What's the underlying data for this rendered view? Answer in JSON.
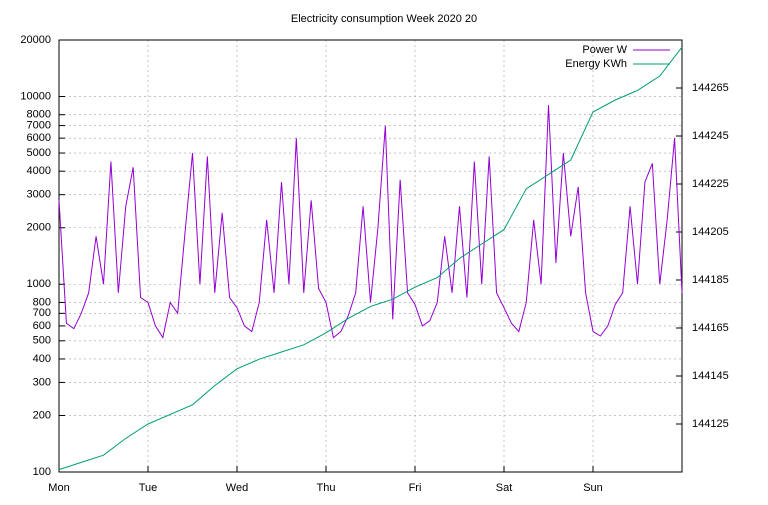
{
  "chart_data": {
    "type": "line",
    "title": "Electricity consumption Week 2020 20",
    "xlim": [
      0,
      168
    ],
    "xticks": [
      {
        "value": 0,
        "label": "Mon"
      },
      {
        "value": 24,
        "label": "Tue"
      },
      {
        "value": 48,
        "label": "Wed"
      },
      {
        "value": 72,
        "label": "Thu"
      },
      {
        "value": 96,
        "label": "Fri"
      },
      {
        "value": 120,
        "label": "Sat"
      },
      {
        "value": 144,
        "label": "Sun"
      }
    ],
    "ylim": [
      100,
      20000
    ],
    "log_y": true,
    "yticks": [
      100,
      200,
      300,
      400,
      500,
      600,
      700,
      800,
      1000,
      2000,
      3000,
      4000,
      5000,
      6000,
      7000,
      8000,
      10000,
      20000
    ],
    "y2lim": [
      144105,
      144285
    ],
    "y2ticks": [
      144125,
      144145,
      144165,
      144185,
      144205,
      144225,
      144245,
      144265
    ],
    "grid": true,
    "legend": "top-right",
    "series": [
      {
        "name": "Power W",
        "color": "#9400d3",
        "x": [
          0,
          2,
          4,
          6,
          8,
          10,
          12,
          14,
          16,
          18,
          20,
          22,
          24,
          26,
          28,
          30,
          32,
          34,
          36,
          38,
          40,
          42,
          44,
          46,
          48,
          50,
          52,
          54,
          56,
          58,
          60,
          62,
          64,
          66,
          68,
          70,
          72,
          74,
          76,
          78,
          80,
          82,
          84,
          86,
          88,
          90,
          92,
          94,
          96,
          98,
          100,
          102,
          104,
          106,
          108,
          110,
          112,
          114,
          116,
          118,
          120,
          122,
          124,
          126,
          128,
          130,
          132,
          134,
          136,
          138,
          140,
          142,
          144,
          146,
          148,
          150,
          152,
          154,
          156,
          158,
          160,
          162,
          164,
          166,
          168
        ],
        "values": [
          2800,
          620,
          580,
          700,
          900,
          1800,
          1000,
          4500,
          900,
          2600,
          4200,
          850,
          800,
          600,
          520,
          800,
          700,
          1900,
          5000,
          1000,
          4800,
          900,
          2400,
          850,
          750,
          600,
          560,
          800,
          2200,
          900,
          3500,
          1000,
          6000,
          900,
          2800,
          950,
          800,
          520,
          560,
          680,
          900,
          2600,
          800,
          2000,
          7000,
          650,
          3600,
          900,
          780,
          600,
          640,
          800,
          1800,
          900,
          2600,
          850,
          4500,
          1000,
          4800,
          900,
          750,
          620,
          560,
          800,
          2200,
          1000,
          9000,
          1300,
          5000,
          1800,
          3300,
          900,
          560,
          530,
          600,
          780,
          900,
          2600,
          1000,
          3500,
          4400,
          1000,
          2200,
          6000,
          900
        ]
      },
      {
        "name": "Energy KWh",
        "color": "#009e73",
        "axis": "y2",
        "x": [
          0,
          6,
          12,
          18,
          24,
          30,
          36,
          42,
          48,
          54,
          60,
          66,
          72,
          78,
          84,
          90,
          96,
          102,
          108,
          114,
          120,
          126,
          132,
          138,
          144,
          150,
          156,
          162,
          168
        ],
        "values": [
          144106,
          144109,
          144112,
          144119,
          144125,
          144129,
          144133,
          144141,
          144148,
          144152,
          144155,
          144158,
          144163,
          144169,
          144174,
          144177,
          144182,
          144186,
          144194,
          144200,
          144206,
          144223,
          144229,
          144235,
          144255,
          144260,
          144264,
          144270,
          144282
        ]
      }
    ]
  }
}
